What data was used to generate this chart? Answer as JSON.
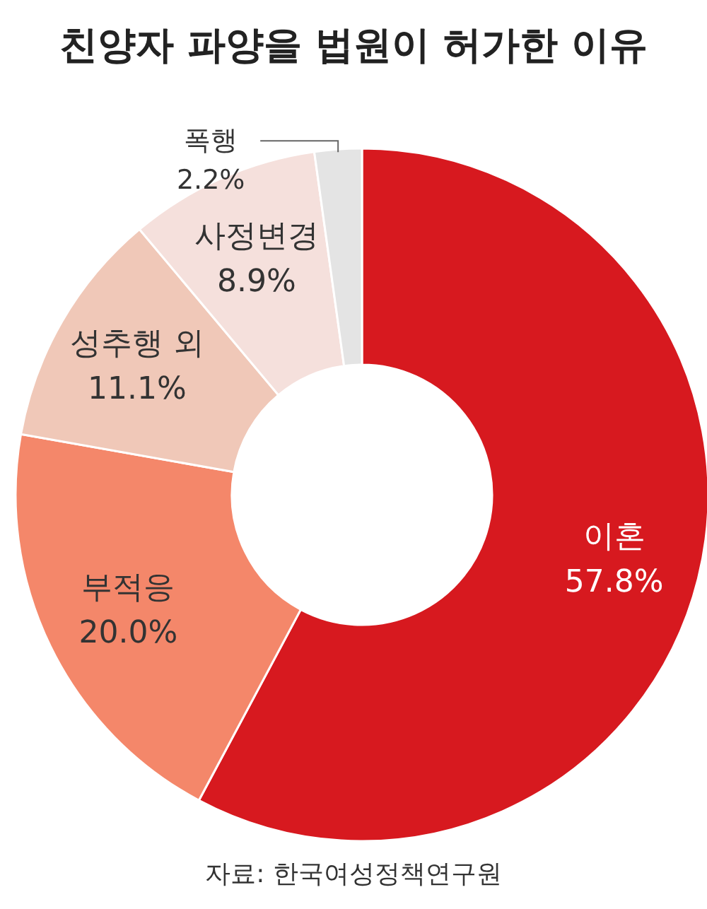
{
  "chart_data": {
    "type": "donut",
    "title": "친양자 파양을 법원이 허가한 이유",
    "categories": [
      "이혼",
      "부적응",
      "성추행 외",
      "사정변경",
      "폭행"
    ],
    "values": [
      57.8,
      20.0,
      11.1,
      8.9,
      2.2
    ],
    "value_labels": [
      "57.8%",
      "20.0%",
      "11.1%",
      "8.9%",
      "2.2%"
    ],
    "colors": [
      "#d7191f",
      "#f4876a",
      "#f0c8b8",
      "#f5e0dc",
      "#e4e4e4"
    ],
    "annotations": [
      "자료: 한국여성정책연구원"
    ],
    "legend": false
  }
}
